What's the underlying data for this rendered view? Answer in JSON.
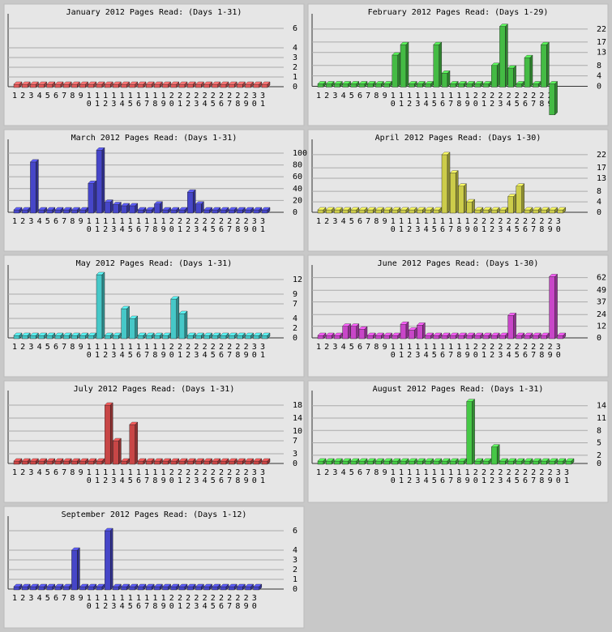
{
  "chart_data": [
    {
      "type": "bar",
      "title": "January 2012 Pages Read: (Days 1-31)",
      "color": "#e05a5a",
      "categories": [
        "1",
        "2",
        "3",
        "4",
        "5",
        "6",
        "7",
        "8",
        "9",
        "10",
        "11",
        "12",
        "13",
        "14",
        "15",
        "16",
        "17",
        "18",
        "19",
        "20",
        "21",
        "22",
        "23",
        "24",
        "25",
        "26",
        "27",
        "28",
        "29",
        "30",
        "31"
      ],
      "values": [
        0,
        0,
        0,
        0,
        0,
        0,
        0,
        0,
        0,
        0,
        0,
        0,
        0,
        0,
        0,
        0,
        0,
        0,
        0,
        0,
        0,
        0,
        0,
        0,
        0,
        0,
        0,
        0,
        0,
        0,
        0
      ],
      "ylim": [
        0,
        7
      ],
      "yticks": [
        0,
        1,
        2,
        3,
        4,
        6
      ],
      "grid": true
    },
    {
      "type": "bar",
      "title": "February 2012 Pages Read: (Days 1-29)",
      "color": "#44bb44",
      "categories": [
        "1",
        "2",
        "3",
        "4",
        "5",
        "6",
        "7",
        "8",
        "9",
        "10",
        "11",
        "12",
        "13",
        "14",
        "15",
        "16",
        "17",
        "18",
        "19",
        "20",
        "21",
        "22",
        "23",
        "24",
        "25",
        "26",
        "27",
        "28",
        "29"
      ],
      "values": [
        0,
        0,
        0,
        0,
        0,
        0,
        0,
        0,
        0,
        12,
        16,
        0,
        0,
        0,
        16,
        5,
        0,
        0,
        0,
        0,
        0,
        8,
        23,
        7,
        0,
        11,
        0,
        16,
        -11
      ],
      "ylim": [
        -12,
        26
      ],
      "yticks": [
        0,
        4,
        8,
        13,
        17,
        22
      ],
      "grid": true
    },
    {
      "type": "bar",
      "title": "March 2012 Pages Read: (Days 1-31)",
      "color": "#4646c8",
      "categories": [
        "1",
        "2",
        "3",
        "4",
        "5",
        "6",
        "7",
        "8",
        "9",
        "10",
        "11",
        "12",
        "13",
        "14",
        "15",
        "16",
        "17",
        "18",
        "19",
        "20",
        "21",
        "22",
        "23",
        "24",
        "25",
        "26",
        "27",
        "28",
        "29",
        "30",
        "31"
      ],
      "values": [
        0,
        0,
        85,
        0,
        0,
        0,
        0,
        0,
        0,
        49,
        105,
        17,
        13,
        11,
        11,
        0,
        0,
        14,
        0,
        0,
        0,
        34,
        14,
        0,
        0,
        0,
        0,
        0,
        0,
        0,
        0
      ],
      "ylim": [
        0,
        115
      ],
      "yticks": [
        0,
        20,
        40,
        60,
        80,
        100
      ],
      "grid": true
    },
    {
      "type": "bar",
      "title": "April 2012 Pages Read: (Days 1-30)",
      "color": "#cccc4a",
      "categories": [
        "1",
        "2",
        "3",
        "4",
        "5",
        "6",
        "7",
        "8",
        "9",
        "10",
        "11",
        "12",
        "13",
        "14",
        "15",
        "16",
        "17",
        "18",
        "19",
        "20",
        "21",
        "22",
        "23",
        "24",
        "25",
        "26",
        "27",
        "28",
        "29",
        "30"
      ],
      "values": [
        0,
        0,
        0,
        0,
        0,
        0,
        0,
        0,
        0,
        0,
        0,
        0,
        0,
        0,
        0,
        22,
        15,
        10,
        4,
        0,
        0,
        0,
        0,
        6,
        10,
        0,
        0,
        0,
        0,
        0
      ],
      "ylim": [
        0,
        26
      ],
      "yticks": [
        0,
        4,
        8,
        13,
        17,
        22
      ],
      "grid": true
    },
    {
      "type": "bar",
      "title": "May 2012 Pages Read: (Days 1-31)",
      "color": "#46c8c8",
      "categories": [
        "1",
        "2",
        "3",
        "4",
        "5",
        "6",
        "7",
        "8",
        "9",
        "10",
        "11",
        "12",
        "13",
        "14",
        "15",
        "16",
        "17",
        "18",
        "19",
        "20",
        "21",
        "22",
        "23",
        "24",
        "25",
        "26",
        "27",
        "28",
        "29",
        "30",
        "31"
      ],
      "values": [
        0,
        0,
        0,
        0,
        0,
        0,
        0,
        0,
        0,
        0,
        13,
        0,
        0,
        6,
        4,
        0,
        0,
        0,
        0,
        8,
        5,
        0,
        0,
        0,
        0,
        0,
        0,
        0,
        0,
        0,
        0
      ],
      "ylim": [
        0,
        14
      ],
      "yticks": [
        0,
        2,
        4,
        7,
        9,
        12
      ],
      "grid": true
    },
    {
      "type": "bar",
      "title": "June 2012 Pages Read: (Days 1-30)",
      "color": "#c846c8",
      "categories": [
        "1",
        "2",
        "3",
        "4",
        "5",
        "6",
        "7",
        "8",
        "9",
        "10",
        "11",
        "12",
        "13",
        "14",
        "15",
        "16",
        "17",
        "18",
        "19",
        "20",
        "21",
        "22",
        "23",
        "24",
        "25",
        "26",
        "27",
        "28",
        "29",
        "30"
      ],
      "values": [
        0,
        0,
        0,
        12,
        12,
        9,
        0,
        0,
        0,
        0,
        14,
        8,
        13,
        0,
        0,
        0,
        0,
        0,
        0,
        0,
        0,
        0,
        0,
        23,
        0,
        0,
        0,
        0,
        63,
        0
      ],
      "ylim": [
        0,
        70
      ],
      "yticks": [
        0,
        12,
        24,
        37,
        49,
        62
      ],
      "grid": true
    },
    {
      "type": "bar",
      "title": "July 2012 Pages Read: (Days 1-31)",
      "color": "#c84646",
      "categories": [
        "1",
        "2",
        "3",
        "4",
        "5",
        "6",
        "7",
        "8",
        "9",
        "10",
        "11",
        "12",
        "13",
        "14",
        "15",
        "16",
        "17",
        "18",
        "19",
        "20",
        "21",
        "22",
        "23",
        "24",
        "25",
        "26",
        "27",
        "28",
        "29",
        "30",
        "31"
      ],
      "values": [
        0,
        0,
        0,
        0,
        0,
        0,
        0,
        0,
        0,
        0,
        0,
        18,
        7,
        0,
        12,
        0,
        0,
        0,
        0,
        0,
        0,
        0,
        0,
        0,
        0,
        0,
        0,
        0,
        0,
        0,
        0
      ],
      "ylim": [
        0,
        21
      ],
      "yticks": [
        0,
        3,
        7,
        10,
        14,
        18
      ],
      "grid": true
    },
    {
      "type": "bar",
      "title": "August 2012 Pages Read: (Days 1-31)",
      "color": "#46c846",
      "categories": [
        "1",
        "2",
        "3",
        "4",
        "5",
        "6",
        "7",
        "8",
        "9",
        "10",
        "11",
        "12",
        "13",
        "14",
        "15",
        "16",
        "17",
        "18",
        "19",
        "20",
        "21",
        "22",
        "23",
        "24",
        "25",
        "26",
        "27",
        "28",
        "29",
        "30",
        "31"
      ],
      "values": [
        0,
        0,
        0,
        0,
        0,
        0,
        0,
        0,
        0,
        0,
        0,
        0,
        0,
        0,
        0,
        0,
        0,
        0,
        15,
        0,
        0,
        4,
        0,
        0,
        0,
        0,
        0,
        0,
        0,
        0,
        0
      ],
      "ylim": [
        0,
        16.5
      ],
      "yticks": [
        0,
        2,
        5,
        8,
        11,
        14
      ],
      "grid": true
    },
    {
      "type": "bar",
      "title": "September 2012 Pages Read: (Days 1-12)",
      "color": "#4646c8",
      "categories": [
        "1",
        "2",
        "3",
        "4",
        "5",
        "6",
        "7",
        "8",
        "9",
        "10",
        "11",
        "12",
        "13",
        "14",
        "15",
        "16",
        "17",
        "18",
        "19",
        "20",
        "21",
        "22",
        "23",
        "24",
        "25",
        "26",
        "27",
        "28",
        "29",
        "30"
      ],
      "values": [
        0,
        0,
        0,
        0,
        0,
        0,
        0,
        4,
        0,
        0,
        0,
        6,
        0,
        0,
        0,
        0,
        0,
        0,
        0,
        0,
        0,
        0,
        0,
        0,
        0,
        0,
        0,
        0,
        0,
        0
      ],
      "ylim": [
        0,
        7
      ],
      "yticks": [
        0,
        1,
        2,
        3,
        4,
        6
      ],
      "grid": true
    }
  ]
}
